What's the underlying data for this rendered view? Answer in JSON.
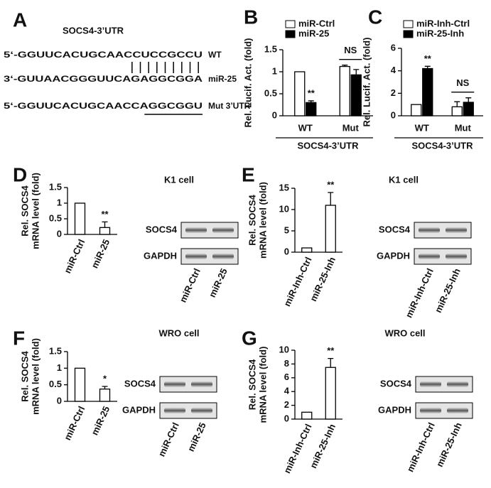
{
  "panel_a": {
    "letter": "A",
    "title": "SOCS4-3’UTR",
    "lines": [
      {
        "seq": "5‘-GGUUCACUGCAACCUCCGCCU",
        "tag": "WT"
      },
      {
        "seq": "3‘-GUUAACGGGUUCAGAGGCGGA",
        "tag": "miR-25"
      },
      {
        "seq": "5‘-GGUUCACUGCAACCAGGCGGU",
        "tag": "Mut 3’UTR"
      }
    ]
  },
  "chart_data": [
    {
      "type": "bar",
      "letter": "B",
      "ylabel": [
        "Rel. Lucif. Act. (fold)"
      ],
      "categories": [
        "WT",
        "Mut"
      ],
      "group_label": "SOCS4-3’UTR",
      "series": [
        {
          "name": "miR-Ctrl",
          "color": "#ffffff",
          "values": [
            1,
            1.12
          ],
          "errors": [
            null,
            0.03
          ]
        },
        {
          "name": "miR-25",
          "color": "#000000",
          "values": [
            0.3,
            0.93
          ],
          "errors": [
            0.04,
            0.12
          ]
        }
      ],
      "significance": [
        "**",
        "NS"
      ],
      "ylim": [
        0,
        1.5
      ],
      "yticks": [
        0,
        0.5,
        1,
        1.5
      ]
    },
    {
      "type": "bar",
      "letter": "C",
      "ylabel": [
        "Rel. Lucif. Act. (fold)"
      ],
      "categories": [
        "WT",
        "Mut"
      ],
      "group_label": "SOCS4-3’UTR",
      "series": [
        {
          "name": "miR-Inh-Ctrl",
          "color": "#ffffff",
          "values": [
            1,
            0.8
          ],
          "errors": [
            null,
            0.45
          ]
        },
        {
          "name": "miR-25-Inh",
          "color": "#000000",
          "values": [
            4.2,
            1.2
          ],
          "errors": [
            0.2,
            0.4
          ]
        }
      ],
      "significance": [
        "**",
        "NS"
      ],
      "ylim": [
        0,
        6
      ],
      "yticks": [
        0,
        2,
        4,
        6
      ]
    },
    {
      "type": "bar",
      "letter": "D",
      "title": "K1 cell",
      "ylabel": [
        "Rel. SOCS4",
        "mRNA level (fold)"
      ],
      "categories": [
        "miR-Ctrl",
        "miR-25"
      ],
      "values": [
        1,
        0.22
      ],
      "errors": [
        null,
        0.18
      ],
      "color": "#ffffff",
      "significance": [
        null,
        "**"
      ],
      "ylim": [
        0,
        1.5
      ],
      "yticks": [
        0,
        0.5,
        1,
        1.5
      ],
      "blot": {
        "bands": [
          "SOCS4",
          "GAPDH"
        ],
        "lanes": [
          "miR-Ctrl",
          "miR-25"
        ]
      }
    },
    {
      "type": "bar",
      "letter": "E",
      "title": "K1 cell",
      "ylabel": [
        "Rel. SOCS4",
        "mRNA level (fold)"
      ],
      "categories": [
        "miR-Inh-Ctrl",
        "miR-25-Inh"
      ],
      "values": [
        1,
        11
      ],
      "errors": [
        null,
        3
      ],
      "color": "#ffffff",
      "significance": [
        null,
        "**"
      ],
      "ylim": [
        0,
        15
      ],
      "yticks": [
        0,
        5,
        10,
        15
      ],
      "blot": {
        "bands": [
          "SOCS4",
          "GAPDH"
        ],
        "lanes": [
          "miR-Inh-Ctrl",
          "miR-25-Inh"
        ]
      }
    },
    {
      "type": "bar",
      "letter": "F",
      "title": "WRO cell",
      "ylabel": [
        "Rel. SOCS4",
        "mRNA level (fold)"
      ],
      "categories": [
        "miR-Ctrl",
        "miR-25"
      ],
      "values": [
        1,
        0.37
      ],
      "errors": [
        null,
        0.08
      ],
      "color": "#ffffff",
      "significance": [
        null,
        "*"
      ],
      "ylim": [
        0,
        1.5
      ],
      "yticks": [
        0,
        0.5,
        1,
        1.5
      ],
      "blot": {
        "bands": [
          "SOCS4",
          "GAPDH"
        ],
        "lanes": [
          "miR-Ctrl",
          "miR-25"
        ]
      }
    },
    {
      "type": "bar",
      "letter": "G",
      "title": "WRO cell",
      "ylabel": [
        "Rel. SOCS4",
        "mRNA level (fold)"
      ],
      "categories": [
        "miR-Inh-Ctrl",
        "miR-25-Inh"
      ],
      "values": [
        1,
        7.5
      ],
      "errors": [
        null,
        1.3
      ],
      "color": "#ffffff",
      "significance": [
        null,
        "**"
      ],
      "ylim": [
        0,
        10
      ],
      "yticks": [
        0,
        2,
        4,
        6,
        8,
        10
      ],
      "blot": {
        "bands": [
          "SOCS4",
          "GAPDH"
        ],
        "lanes": [
          "miR-Inh-Ctrl",
          "miR-25-Inh"
        ]
      }
    }
  ]
}
